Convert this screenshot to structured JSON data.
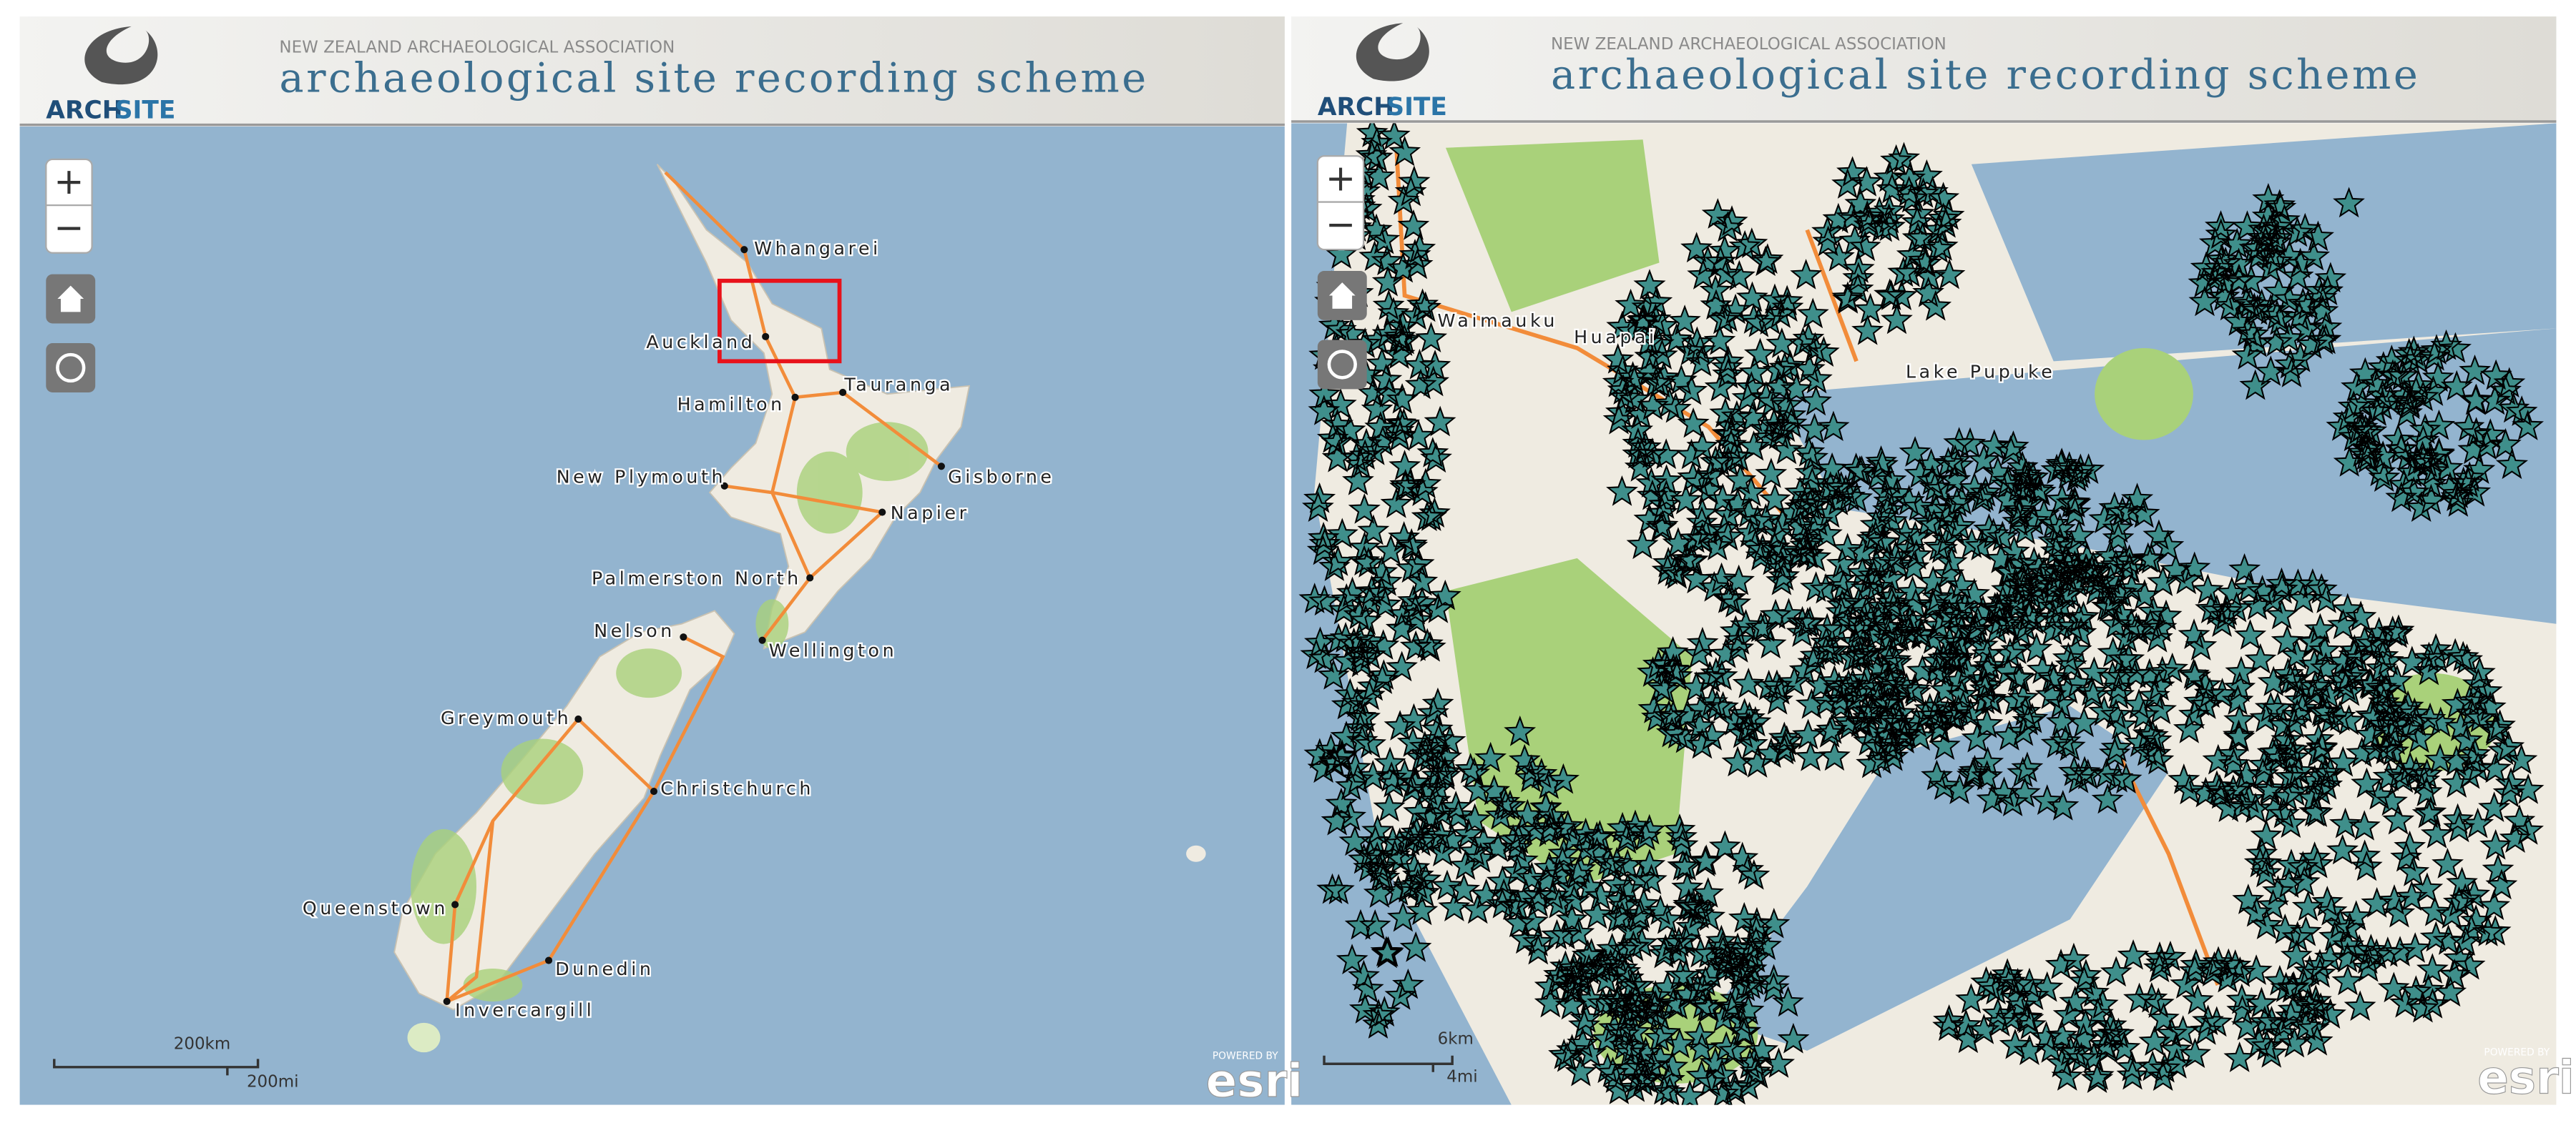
{
  "panels": [
    {
      "header": {
        "org": "NEW ZEALAND ARCHAEOLOGICAL ASSOCIATION",
        "title": "archaeological site recording scheme",
        "logo_a": "ARCH",
        "logo_b": "SITE"
      },
      "zoom": {
        "in": "+",
        "out": "−"
      },
      "places": [
        "Whangarei",
        "Auckland",
        "Tauranga",
        "Hamilton",
        "New Plymouth",
        "Gisborne",
        "Napier",
        "Palmerston North",
        "Nelson",
        "Wellington",
        "Greymouth",
        "Christchurch",
        "Queenstown",
        "Dunedin",
        "Invercargill"
      ],
      "scale": {
        "metric": "200km",
        "imperial": "200mi"
      },
      "attribution": {
        "powered": "POWERED BY",
        "brand": "esri"
      }
    },
    {
      "header": {
        "org": "NEW ZEALAND ARCHAEOLOGICAL ASSOCIATION",
        "title": "archaeological site recording scheme",
        "logo_a": "ARCH",
        "logo_b": "SITE"
      },
      "zoom": {
        "in": "+",
        "out": "−"
      },
      "places": [
        "Waimauku",
        "Huapai",
        "Lake Pupuke"
      ],
      "scale": {
        "metric": "6km",
        "imperial": "4mi"
      },
      "attribution": {
        "powered": "POWERED BY",
        "brand": "esri"
      }
    }
  ]
}
